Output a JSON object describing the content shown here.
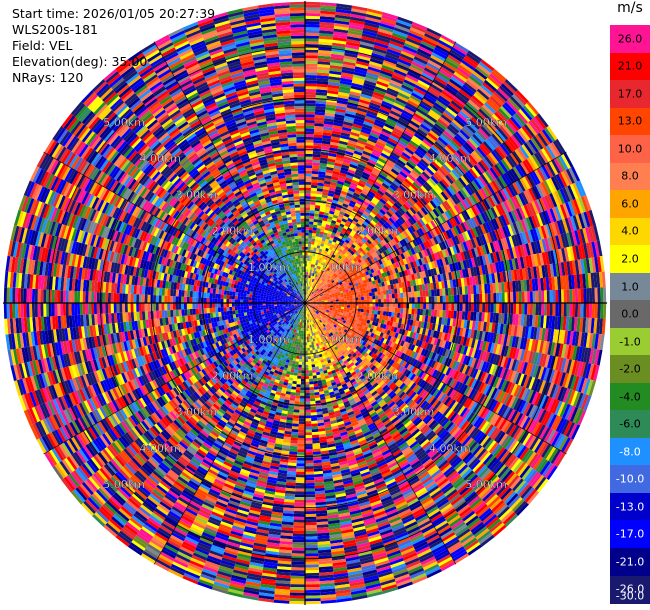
{
  "info": {
    "start_time": "Start time: 2026/01/05 20:27:39",
    "instrument": "WLS200s-181",
    "field": "Field: VEL",
    "elevation": "Elevation(deg): 35.00",
    "nrays": "NRays: 120"
  },
  "colorbar": {
    "unit": "m/s",
    "levels": [
      {
        "label": "26.0",
        "color": "#ff1493",
        "value": 26.0
      },
      {
        "label": "21.0",
        "color": "#ff0000",
        "value": 21.0
      },
      {
        "label": "17.0",
        "color": "#e8282e",
        "value": 17.0
      },
      {
        "label": "13.0",
        "color": "#ff4500",
        "value": 13.0
      },
      {
        "label": "10.0",
        "color": "#ff6347",
        "value": 10.0
      },
      {
        "label": "8.0",
        "color": "#ff7f50",
        "value": 8.0
      },
      {
        "label": "6.0",
        "color": "#ffa500",
        "value": 6.0
      },
      {
        "label": "4.0",
        "color": "#ffd700",
        "value": 4.0
      },
      {
        "label": "2.0",
        "color": "#ffff00",
        "value": 2.0
      },
      {
        "label": "1.0",
        "color": "#778899",
        "value": 1.0
      },
      {
        "label": "0.0",
        "color": "#696969",
        "value": 0.0
      },
      {
        "label": "-1.0",
        "color": "#9acd32",
        "value": -1.0
      },
      {
        "label": "-2.0",
        "color": "#6b8e23",
        "value": -2.0
      },
      {
        "label": "-4.0",
        "color": "#228b22",
        "value": -4.0
      },
      {
        "label": "-6.0",
        "color": "#2e8b57",
        "value": -6.0
      },
      {
        "label": "-8.0",
        "color": "#1e90ff",
        "value": -8.0
      },
      {
        "label": "-10.0",
        "color": "#4169e1",
        "value": -10.0
      },
      {
        "label": "-13.0",
        "color": "#0000cd",
        "value": -13.0
      },
      {
        "label": "-17.0",
        "color": "#0000ff",
        "value": -17.0
      },
      {
        "label": "-21.0",
        "color": "#00008b",
        "value": -21.0
      },
      {
        "label": "-26.0",
        "color": "#191970",
        "value": -26.0
      }
    ],
    "bottom_label": "-30.0"
  },
  "chart_data": {
    "type": "heatmap",
    "projection": "polar (PPI)",
    "field": "VEL",
    "units": "m/s",
    "elevation_deg": 35.0,
    "nrays": 120,
    "range_rings_km": [
      1.0,
      2.0,
      3.0,
      4.0,
      5.0
    ],
    "ring_labels": [
      "1.00km",
      "2.00km",
      "3.00km",
      "4.00km",
      "5.00km"
    ],
    "max_range_km": 5.9,
    "value_range": [
      -30.0,
      30.0
    ],
    "pattern": "near-range dipole: negative (blue/green) to the west, positive (red/orange) to the east; far range appears noisy/random across full scale"
  }
}
